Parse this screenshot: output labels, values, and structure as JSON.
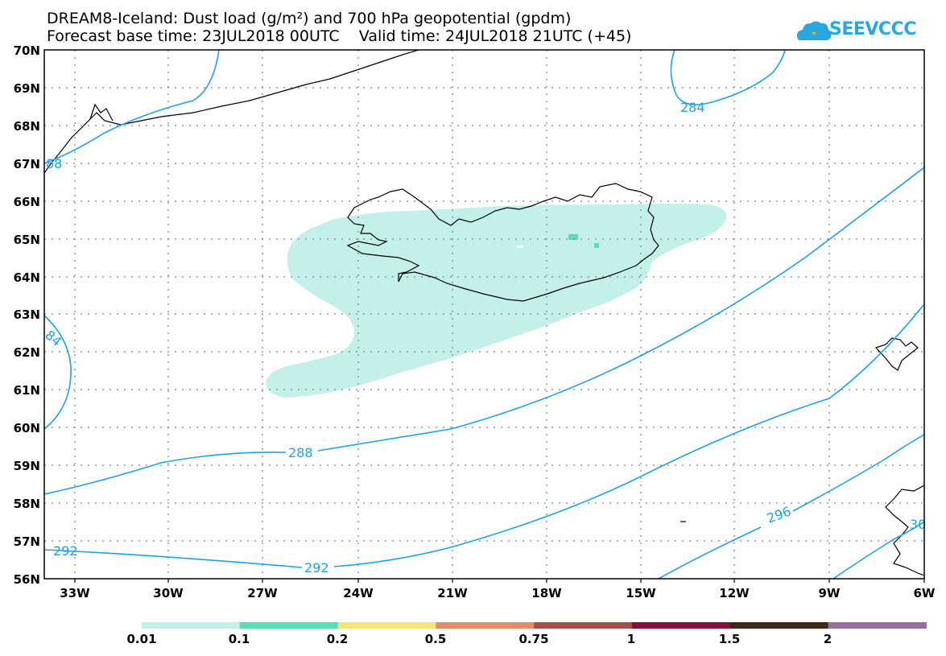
{
  "title_line1": "DREAM8-Iceland: Dust load (g/m²) and 700 hPa geopotential (gpdm)",
  "title_line2": "Forecast base time: 23JUL2018 00UTC    Valid time: 24JUL2018 21UTC (+45)",
  "logo_text": "SEEVCCC",
  "lat_labels": [
    "70N",
    "69N",
    "68N",
    "67N",
    "66N",
    "65N",
    "64N",
    "63N",
    "62N",
    "61N",
    "60N",
    "59N",
    "58N",
    "57N",
    "56N"
  ],
  "lon_labels": [
    "33W",
    "30W",
    "27W",
    "24W",
    "21W",
    "18W",
    "15W",
    "12W",
    "9W",
    "6W"
  ],
  "contour_labels": {
    "c284_top": "284",
    "c288_left": "88",
    "c284_left": "84",
    "c288": "288",
    "c292_left": "292",
    "c292_mid": "292",
    "c296": "296",
    "c300": "30"
  },
  "colorbar": {
    "colors": [
      "#c4f0ea",
      "#5cdcb4",
      "#f5e67c",
      "#e8896a",
      "#a4504a",
      "#84103a",
      "#3e2818",
      "#9870a0"
    ],
    "labels": [
      "0.01",
      "0.1",
      "0.2",
      "0.5",
      "0.75",
      "1",
      "1.5",
      "2"
    ]
  },
  "colors": {
    "contour": "#1aa3e8",
    "dust_low": "#c4f0ea",
    "dust_mid": "#5cdcb4"
  }
}
